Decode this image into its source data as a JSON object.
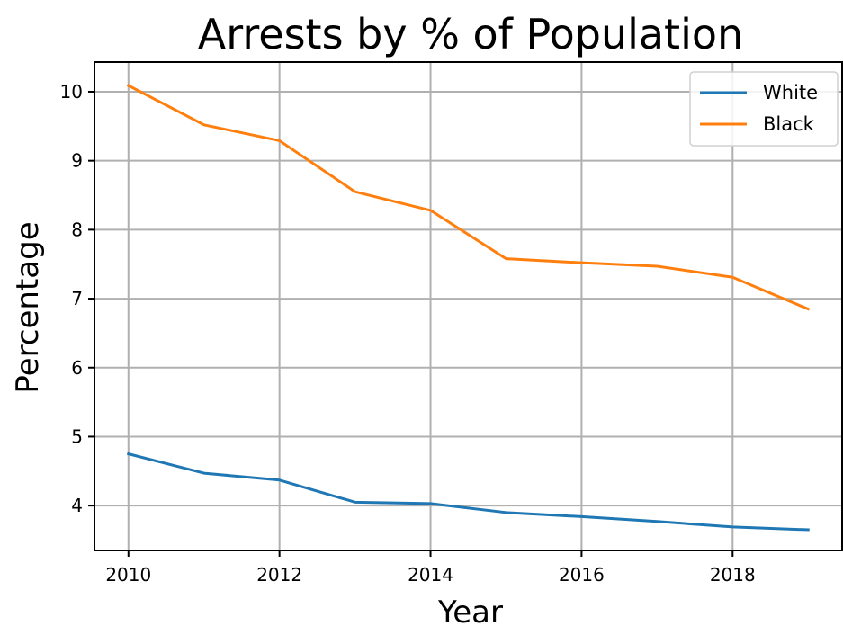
{
  "chart_data": {
    "type": "line",
    "title": "Arrests by % of Population",
    "xlabel": "Year",
    "ylabel": "Percentage",
    "x": [
      2010,
      2011,
      2012,
      2013,
      2014,
      2015,
      2016,
      2017,
      2018,
      2019
    ],
    "xlim": [
      2009.55,
      2019.45
    ],
    "ylim": [
      3.35,
      10.43
    ],
    "x_ticks": [
      "2010",
      "2012",
      "2014",
      "2016",
      "2018"
    ],
    "y_ticks": [
      "4",
      "5",
      "6",
      "7",
      "8",
      "9",
      "10"
    ],
    "grid": true,
    "legend_position": "top-right",
    "series": [
      {
        "name": "White",
        "color": "#1f77b4",
        "values": [
          4.75,
          4.47,
          4.37,
          4.05,
          4.03,
          3.9,
          3.84,
          3.77,
          3.69,
          3.65
        ]
      },
      {
        "name": "Black",
        "color": "#ff7f0e",
        "values": [
          10.09,
          9.52,
          9.29,
          8.55,
          8.28,
          7.58,
          7.52,
          7.47,
          7.31,
          6.85
        ]
      }
    ]
  }
}
